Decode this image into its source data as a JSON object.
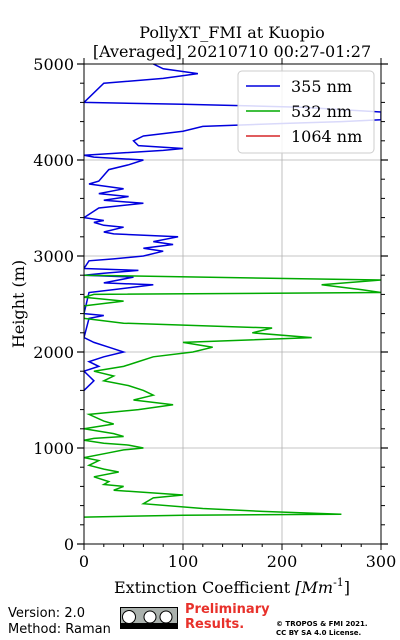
{
  "chart_data": {
    "type": "line",
    "title": "PollyXT_FMI at Kuopio",
    "subtitle": "[Averaged] 20210710 00:27-01:27",
    "xlabel": "Extinction Coefficient",
    "xlabel_unit": "[Mm",
    "xlabel_unit_exp": "-1",
    "xlabel_unit_close": "]",
    "ylabel": "Height (m)",
    "xlim": [
      0,
      300
    ],
    "ylim": [
      0,
      5000
    ],
    "xticks": [
      "0",
      "100",
      "200",
      "300"
    ],
    "yticks": [
      "0",
      "1000",
      "2000",
      "3000",
      "4000",
      "5000"
    ],
    "grid": true,
    "legend_position": "top-right",
    "series": [
      {
        "name": "355 nm",
        "color": "#0000dd",
        "points": [
          [
            0,
            1600
          ],
          [
            5,
            1650
          ],
          [
            10,
            1700
          ],
          [
            5,
            1750
          ],
          [
            0,
            1800
          ],
          [
            15,
            1850
          ],
          [
            5,
            1900
          ],
          [
            20,
            1950
          ],
          [
            40,
            2000
          ],
          [
            25,
            2050
          ],
          [
            10,
            2100
          ],
          [
            0,
            2150
          ],
          [
            5,
            2350
          ],
          [
            20,
            2380
          ],
          [
            0,
            2400
          ],
          [
            5,
            2620
          ],
          [
            30,
            2650
          ],
          [
            70,
            2700
          ],
          [
            20,
            2720
          ],
          [
            50,
            2780
          ],
          [
            0,
            2800
          ],
          [
            20,
            2820
          ],
          [
            55,
            2850
          ],
          [
            0,
            2870
          ],
          [
            5,
            2950
          ],
          [
            30,
            2970
          ],
          [
            60,
            3000
          ],
          [
            80,
            3050
          ],
          [
            60,
            3080
          ],
          [
            90,
            3120
          ],
          [
            70,
            3150
          ],
          [
            95,
            3200
          ],
          [
            30,
            3230
          ],
          [
            20,
            3250
          ],
          [
            40,
            3300
          ],
          [
            20,
            3320
          ],
          [
            10,
            3350
          ],
          [
            20,
            3370
          ],
          [
            0,
            3400
          ],
          [
            15,
            3500
          ],
          [
            60,
            3550
          ],
          [
            20,
            3580
          ],
          [
            45,
            3620
          ],
          [
            15,
            3650
          ],
          [
            40,
            3700
          ],
          [
            5,
            3750
          ],
          [
            15,
            3780
          ],
          [
            25,
            3900
          ],
          [
            45,
            3950
          ],
          [
            60,
            4000
          ],
          [
            10,
            4030
          ],
          [
            0,
            4050
          ],
          [
            80,
            4100
          ],
          [
            100,
            4120
          ],
          [
            55,
            4150
          ],
          [
            50,
            4200
          ],
          [
            60,
            4250
          ],
          [
            100,
            4300
          ],
          [
            120,
            4350
          ],
          [
            200,
            4380
          ],
          [
            260,
            4400
          ],
          [
            300,
            4420
          ],
          [
            300,
            4480
          ],
          [
            300,
            4500
          ],
          [
            220,
            4550
          ],
          [
            100,
            4580
          ],
          [
            0,
            4600
          ],
          [
            20,
            4800
          ],
          [
            80,
            4850
          ],
          [
            115,
            4900
          ],
          [
            80,
            4950
          ],
          [
            70,
            5000
          ]
        ]
      },
      {
        "name": "532 nm",
        "color": "#00aa00",
        "points": [
          [
            0,
            280
          ],
          [
            100,
            300
          ],
          [
            260,
            310
          ],
          [
            180,
            340
          ],
          [
            120,
            370
          ],
          [
            60,
            420
          ],
          [
            70,
            480
          ],
          [
            100,
            510
          ],
          [
            30,
            560
          ],
          [
            40,
            600
          ],
          [
            20,
            620
          ],
          [
            25,
            650
          ],
          [
            10,
            700
          ],
          [
            35,
            750
          ],
          [
            20,
            780
          ],
          [
            5,
            820
          ],
          [
            15,
            870
          ],
          [
            0,
            900
          ],
          [
            25,
            950
          ],
          [
            40,
            980
          ],
          [
            60,
            1000
          ],
          [
            45,
            1030
          ],
          [
            20,
            1050
          ],
          [
            0,
            1080
          ],
          [
            10,
            1100
          ],
          [
            40,
            1120
          ],
          [
            30,
            1150
          ],
          [
            0,
            1200
          ],
          [
            30,
            1250
          ],
          [
            20,
            1280
          ],
          [
            5,
            1350
          ],
          [
            55,
            1400
          ],
          [
            90,
            1450
          ],
          [
            50,
            1500
          ],
          [
            70,
            1550
          ],
          [
            60,
            1600
          ],
          [
            45,
            1650
          ],
          [
            20,
            1700
          ],
          [
            30,
            1750
          ],
          [
            10,
            1800
          ],
          [
            40,
            1850
          ],
          [
            55,
            1900
          ],
          [
            70,
            1950
          ],
          [
            110,
            2000
          ],
          [
            130,
            2050
          ],
          [
            100,
            2100
          ],
          [
            230,
            2150
          ],
          [
            170,
            2200
          ],
          [
            190,
            2250
          ],
          [
            40,
            2300
          ],
          [
            0,
            2350
          ],
          [
            0,
            2480
          ],
          [
            40,
            2530
          ],
          [
            0,
            2570
          ],
          [
            10,
            2600
          ],
          [
            300,
            2620
          ],
          [
            280,
            2650
          ],
          [
            240,
            2700
          ],
          [
            300,
            2750
          ],
          [
            0,
            2800
          ]
        ]
      },
      {
        "name": "1064 nm",
        "color": "#d62728",
        "points": []
      }
    ]
  },
  "footer": {
    "version": "Version: 2.0",
    "method": "Method: Raman",
    "preliminary_line1": "Preliminary",
    "preliminary_line2": "Results.",
    "copyright_line1": "© TROPOS & FMI 2021.",
    "copyright_line2": "CC BY SA 4.0 License."
  }
}
